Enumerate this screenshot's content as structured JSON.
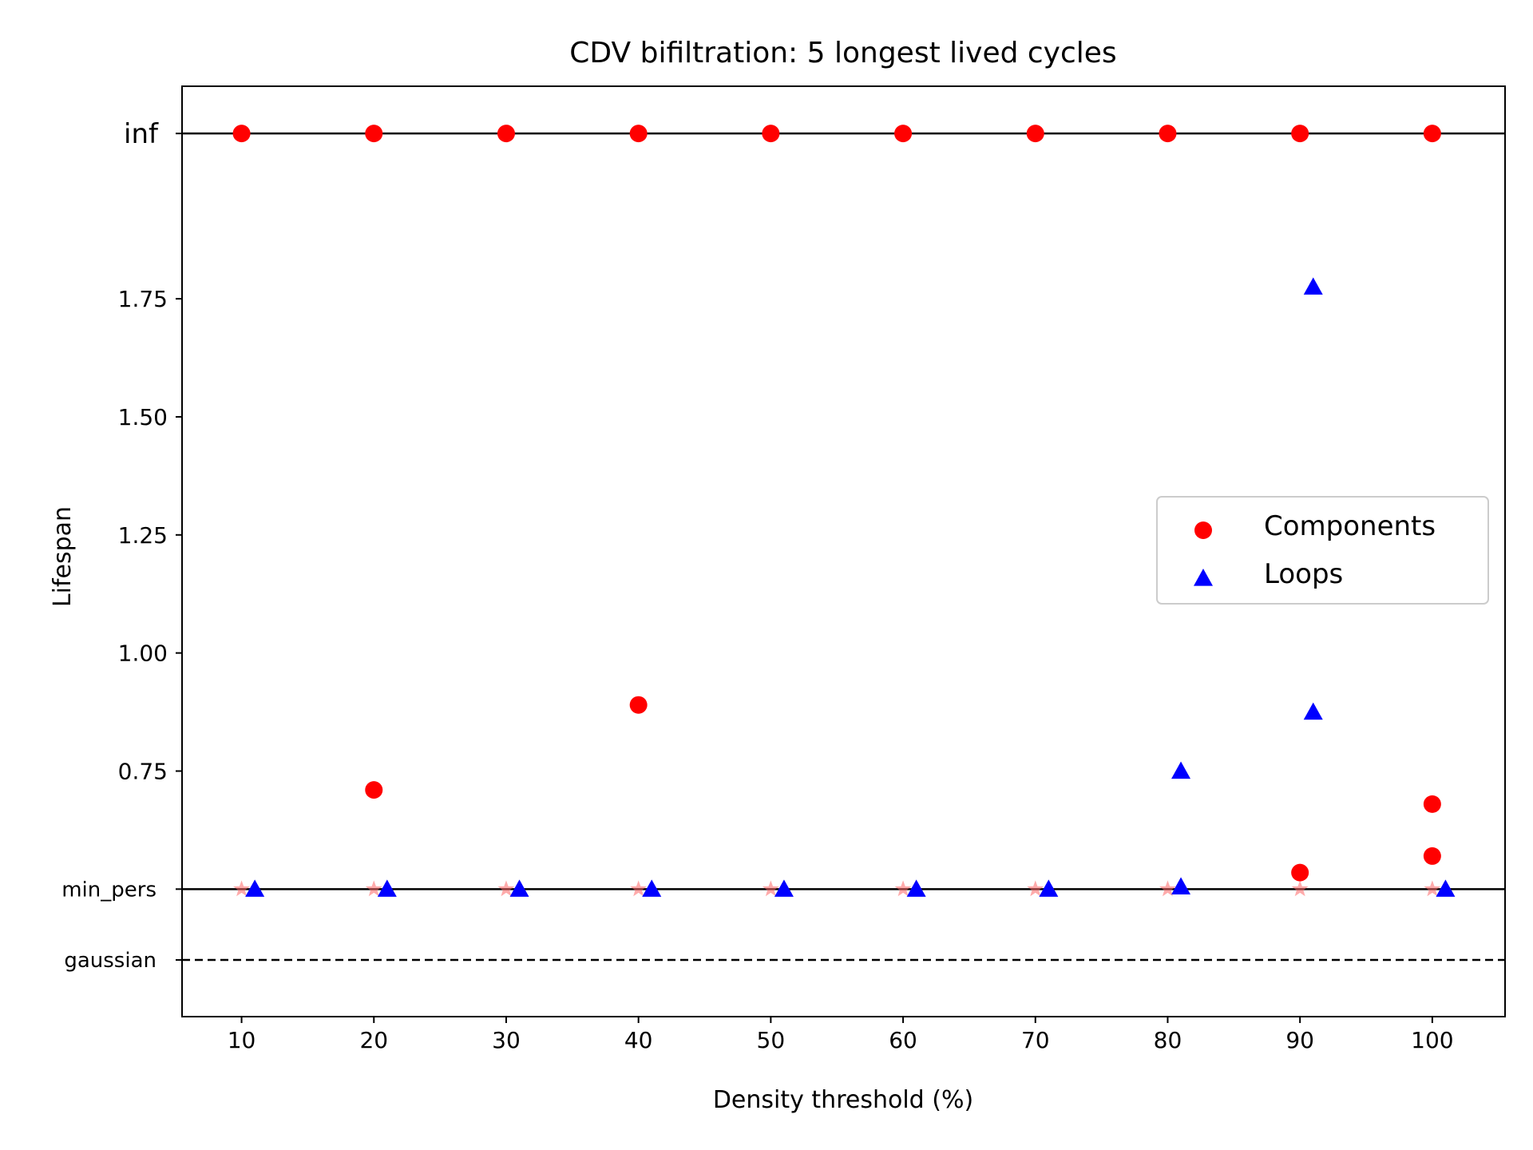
{
  "chart_data": {
    "type": "scatter",
    "title": "CDV bifiltration: 5 longest lived cycles",
    "xlabel": "Density threshold (%)",
    "ylabel": "Lifespan",
    "xlim": [
      5.5,
      105.5
    ],
    "ylim": [
      0.23,
      2.2
    ],
    "x_ticks": [
      10,
      20,
      30,
      40,
      50,
      60,
      70,
      80,
      90,
      100
    ],
    "y_ticks": [
      {
        "value": 0.75,
        "label": "0.75"
      },
      {
        "value": 1.0,
        "label": "1.00"
      },
      {
        "value": 1.25,
        "label": "1.25"
      },
      {
        "value": 1.5,
        "label": "1.50"
      },
      {
        "value": 1.75,
        "label": "1.75"
      }
    ],
    "reference_lines": [
      {
        "label": "inf",
        "y": 2.1,
        "style": "solid"
      },
      {
        "label": "min_pers",
        "y": 0.5,
        "style": "solid"
      },
      {
        "label": "gaussian",
        "y": 0.35,
        "style": "dashed"
      }
    ],
    "legend": {
      "placement": "center-right"
    },
    "series": [
      {
        "name": "Components",
        "marker": "circle",
        "color": "#ff0000",
        "points": [
          {
            "x": 10,
            "y": 2.1
          },
          {
            "x": 20,
            "y": 2.1
          },
          {
            "x": 30,
            "y": 2.1
          },
          {
            "x": 40,
            "y": 2.1
          },
          {
            "x": 50,
            "y": 2.1
          },
          {
            "x": 60,
            "y": 2.1
          },
          {
            "x": 70,
            "y": 2.1
          },
          {
            "x": 80,
            "y": 2.1
          },
          {
            "x": 90,
            "y": 2.1
          },
          {
            "x": 100,
            "y": 2.1
          },
          {
            "x": 20,
            "y": 0.71
          },
          {
            "x": 40,
            "y": 0.89
          },
          {
            "x": 90,
            "y": 0.535
          },
          {
            "x": 100,
            "y": 0.68
          },
          {
            "x": 100,
            "y": 0.57
          }
        ]
      },
      {
        "name": "Loops",
        "marker": "triangle",
        "color": "#0000ff",
        "points": [
          {
            "x": 11,
            "y": 0.5
          },
          {
            "x": 21,
            "y": 0.5
          },
          {
            "x": 31,
            "y": 0.5
          },
          {
            "x": 41,
            "y": 0.5
          },
          {
            "x": 51,
            "y": 0.5
          },
          {
            "x": 61,
            "y": 0.5
          },
          {
            "x": 71,
            "y": 0.5
          },
          {
            "x": 81,
            "y": 0.505
          },
          {
            "x": 101,
            "y": 0.5
          },
          {
            "x": 81,
            "y": 0.75
          },
          {
            "x": 91,
            "y": 0.875
          },
          {
            "x": 91,
            "y": 1.775
          }
        ]
      },
      {
        "marker": "star",
        "color": "#ff6666",
        "points": [
          {
            "x": 10,
            "y": 0.5
          },
          {
            "x": 20,
            "y": 0.5
          },
          {
            "x": 30,
            "y": 0.5
          },
          {
            "x": 40,
            "y": 0.5
          },
          {
            "x": 50,
            "y": 0.5
          },
          {
            "x": 60,
            "y": 0.5
          },
          {
            "x": 70,
            "y": 0.5
          },
          {
            "x": 80,
            "y": 0.5
          },
          {
            "x": 90,
            "y": 0.5
          },
          {
            "x": 100,
            "y": 0.5
          }
        ]
      }
    ]
  }
}
